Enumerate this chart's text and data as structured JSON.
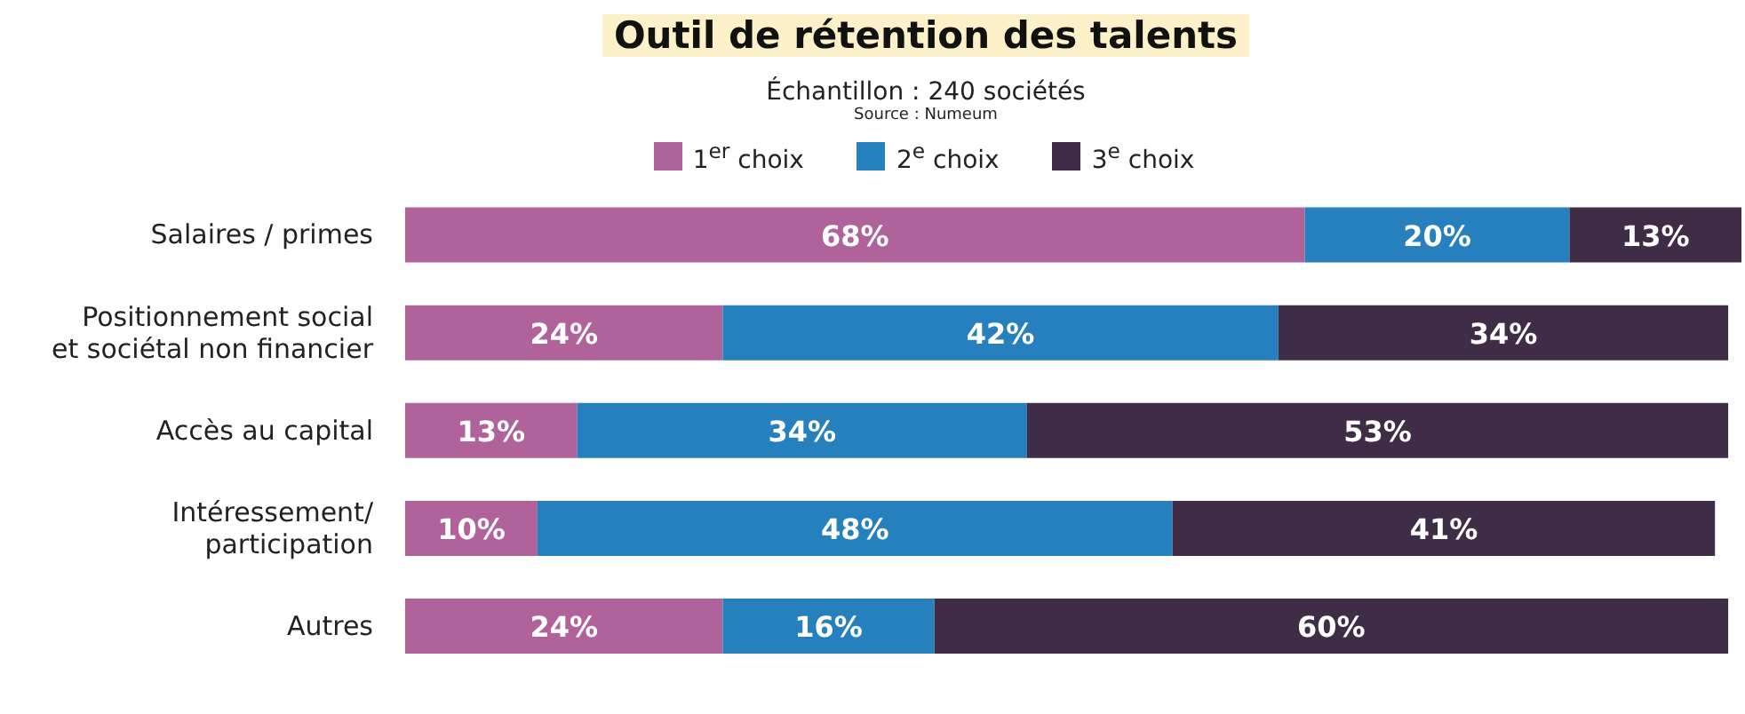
{
  "chart_data": {
    "type": "bar",
    "orientation": "horizontal",
    "stacked": true,
    "title": "Outil de rétention des talents",
    "subtitle": "Échantillon : 240 sociétés",
    "annotations": [
      "Source : Numeum"
    ],
    "categories": [
      "Salaires / primes",
      "Positionnement social\net sociétal non financier",
      "Accès au capital",
      "Intéressement/\nparticipation",
      "Autres"
    ],
    "series": [
      {
        "name": "1$^{er}$ choix",
        "color": "#b0639b",
        "values": [
          68,
          24,
          13,
          10,
          24
        ],
        "value_labels": [
          "68%",
          "24%",
          "13%",
          "10%",
          "24%"
        ]
      },
      {
        "name": "2$^{e}$ choix",
        "color": "#2580bd",
        "values": [
          20,
          42,
          34,
          48,
          16
        ],
        "value_labels": [
          "20%",
          "42%",
          "34%",
          "48%",
          "16%"
        ]
      },
      {
        "name": "3$^{e}$ choix",
        "color": "#3f2d47",
        "values": [
          13,
          34,
          53,
          41,
          60
        ],
        "value_labels": [
          "13%",
          "34%",
          "53%",
          "41%",
          "60%"
        ]
      }
    ],
    "xlim": [
      0,
      101
    ],
    "tick_labels": "y",
    "legend": "top"
  }
}
